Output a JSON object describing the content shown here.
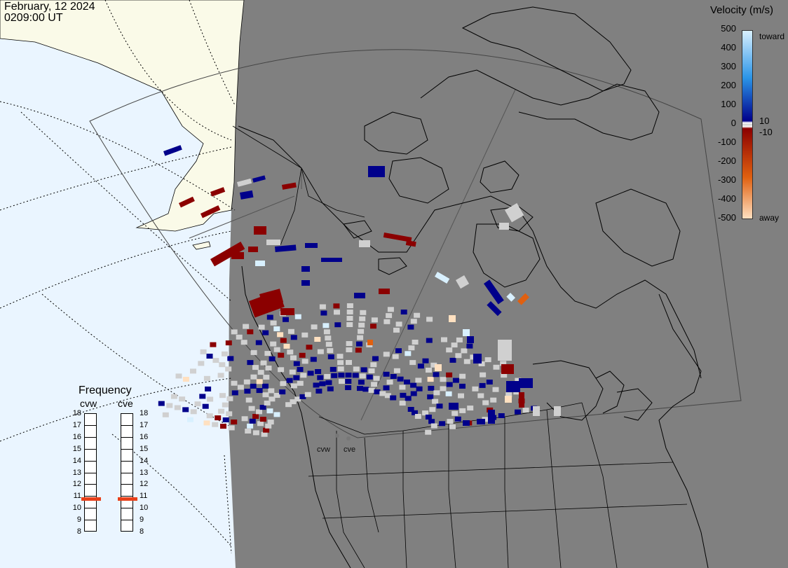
{
  "header": {
    "date": "February, 12 2024",
    "time": "0209:00 UT"
  },
  "colorbar": {
    "title": "Velocity (m/s)",
    "tick_values": [
      "500",
      "400",
      "300",
      "200",
      "100",
      "0",
      "-100",
      "-200",
      "-300",
      "-400",
      "-500"
    ],
    "extra_pos": "10",
    "extra_neg": "-10",
    "toward_label": "toward",
    "away_label": "away",
    "colors": {
      "toward_max": "#d8f0ff",
      "toward_mid": "#2b95e8",
      "toward_low": "#00008b",
      "ground": "#d0d0d0",
      "away_low": "#8b0000",
      "away_mid": "#e06010",
      "away_max": "#ffe0c0"
    }
  },
  "frequency_panel": {
    "title": "Frequency",
    "radars": [
      {
        "name": "cvw",
        "frequency_mhz": 10.8
      },
      {
        "name": "cve",
        "frequency_mhz": 10.8
      }
    ],
    "scale": [
      "18",
      "17",
      "16",
      "15",
      "14",
      "13",
      "12",
      "11",
      "10",
      "9",
      "8"
    ]
  },
  "sites": [
    {
      "name": "cvw"
    },
    {
      "name": "cve"
    }
  ],
  "map_colors": {
    "ocean_day": "#eaf5ff",
    "land_day": "#fafae8",
    "night": "#808080",
    "coast": "#000000"
  }
}
